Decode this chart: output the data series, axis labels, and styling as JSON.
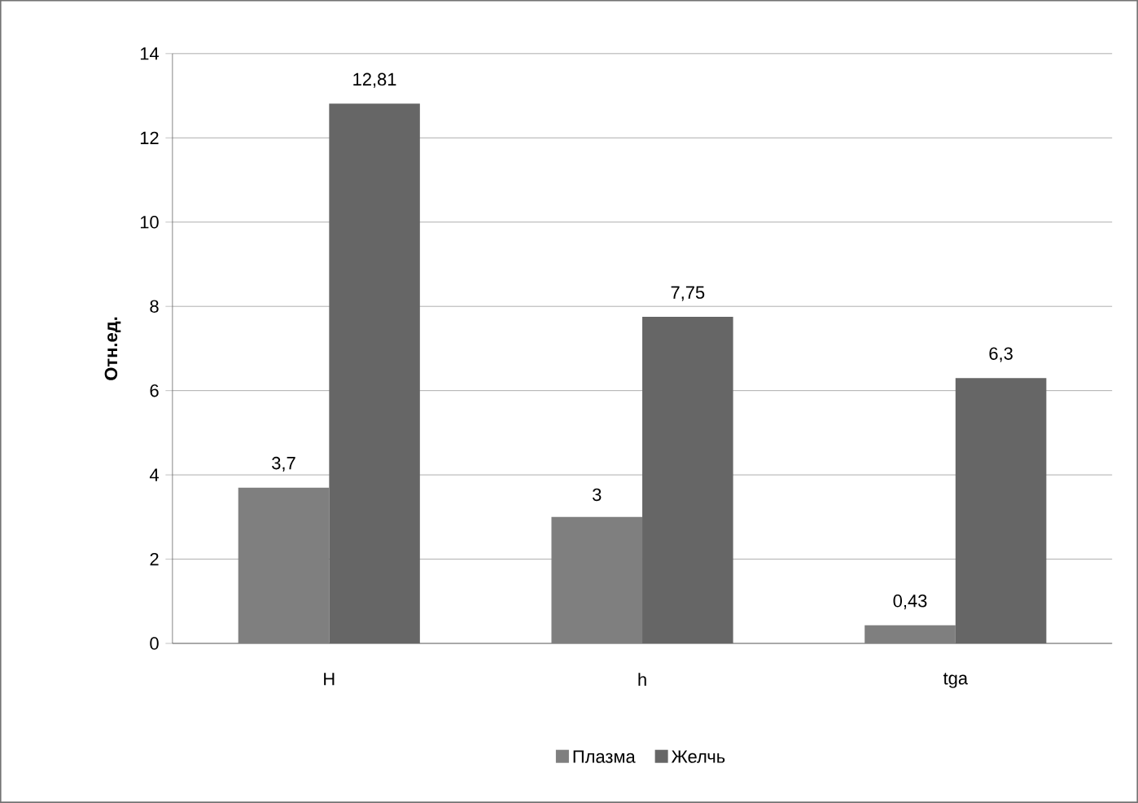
{
  "chart_data": {
    "type": "bar",
    "ylabel": "Отн.ед.",
    "categories": [
      "H",
      "h",
      "tga"
    ],
    "series": [
      {
        "name": "Плазма",
        "color": "#7f7f7f",
        "values": [
          3.7,
          3,
          0.43
        ],
        "value_labels": [
          "3,7",
          "3",
          "0,43"
        ]
      },
      {
        "name": "Желчь",
        "color": "#666666",
        "values": [
          12.81,
          7.75,
          6.3
        ],
        "value_labels": [
          "12,81",
          "7,75",
          "6,3"
        ]
      }
    ],
    "ylim": [
      0,
      14
    ],
    "yticks": [
      0,
      2,
      4,
      6,
      8,
      10,
      12,
      14
    ],
    "grid": "y",
    "legend": "bottom"
  }
}
